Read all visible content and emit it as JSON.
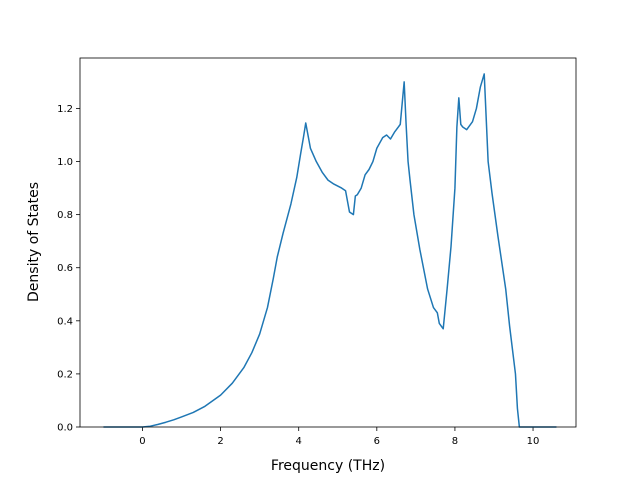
{
  "chart_data": {
    "type": "line",
    "title": "",
    "xlabel": "Frequency (THz)",
    "ylabel": "Density of States",
    "xlim": [
      -1.6,
      11.1
    ],
    "ylim": [
      0,
      1.39
    ],
    "xticks": [
      0,
      2,
      4,
      6,
      8,
      10
    ],
    "yticks": [
      0.0,
      0.2,
      0.4,
      0.6,
      0.8,
      1.0,
      1.2
    ],
    "xtick_labels": [
      "0",
      "2",
      "4",
      "6",
      "8",
      "10"
    ],
    "ytick_labels": [
      "0.0",
      "0.2",
      "0.4",
      "0.6",
      "0.8",
      "1.0",
      "1.2"
    ],
    "grid": false,
    "legend": "none",
    "color": "#1f77b4",
    "series": [
      {
        "x": [
          -1.0,
          -0.5,
          0.0,
          0.2,
          0.4,
          0.6,
          0.8,
          1.0,
          1.3,
          1.6,
          2.0,
          2.3,
          2.6,
          2.8,
          3.0,
          3.2,
          3.35,
          3.45,
          3.6,
          3.8,
          3.95,
          4.05,
          4.12,
          4.18,
          4.3,
          4.45,
          4.6,
          4.75,
          4.9,
          5.1,
          5.2,
          5.3,
          5.4,
          5.45,
          5.5,
          5.6,
          5.7,
          5.8,
          5.9,
          6.0,
          6.15,
          6.25,
          6.35,
          6.45,
          6.5,
          6.55,
          6.6,
          6.7,
          6.75,
          6.8,
          6.85,
          6.95,
          7.1,
          7.3,
          7.45,
          7.55,
          7.6,
          7.7,
          7.8,
          7.9,
          8.0,
          8.05,
          8.1,
          8.15,
          8.2,
          8.3,
          8.45,
          8.55,
          8.65,
          8.75,
          8.85,
          8.95,
          9.1,
          9.3,
          9.4,
          9.55,
          9.6,
          9.65,
          10.0,
          10.6
        ],
        "y": [
          0.0,
          0.0,
          0.0,
          0.003,
          0.01,
          0.018,
          0.027,
          0.038,
          0.055,
          0.078,
          0.12,
          0.165,
          0.225,
          0.28,
          0.35,
          0.45,
          0.56,
          0.64,
          0.73,
          0.84,
          0.94,
          1.03,
          1.09,
          1.145,
          1.05,
          1.0,
          0.96,
          0.93,
          0.915,
          0.9,
          0.89,
          0.81,
          0.8,
          0.87,
          0.875,
          0.9,
          0.95,
          0.97,
          1.0,
          1.05,
          1.09,
          1.1,
          1.085,
          1.11,
          1.12,
          1.13,
          1.14,
          1.3,
          1.14,
          1.0,
          0.93,
          0.8,
          0.67,
          0.52,
          0.45,
          0.43,
          0.39,
          0.37,
          0.52,
          0.68,
          0.9,
          1.13,
          1.24,
          1.14,
          1.13,
          1.12,
          1.15,
          1.2,
          1.28,
          1.33,
          1.0,
          0.88,
          0.72,
          0.52,
          0.38,
          0.2,
          0.07,
          0.0,
          0.0,
          0.0
        ]
      }
    ]
  }
}
